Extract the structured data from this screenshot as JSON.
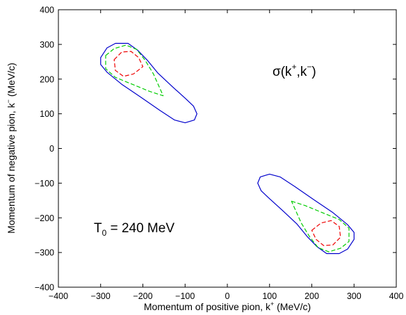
{
  "chart_data": {
    "type": "contour",
    "xlabel": "Momentum of positive pion, k",
    "xlabel_sup": "+",
    "xlabel_unit": " (MeV/c)",
    "ylabel": "Momentum of negative pion, k",
    "ylabel_sup": "−",
    "ylabel_unit": " (MeV/c)",
    "xlim": [
      -400,
      400
    ],
    "ylim": [
      -400,
      400
    ],
    "xticks": [
      -400,
      -300,
      -200,
      -100,
      0,
      100,
      200,
      300,
      400
    ],
    "yticks": [
      -400,
      -300,
      -200,
      -100,
      0,
      100,
      200,
      300,
      400
    ],
    "x_tick_labels": [
      "−400",
      "−300",
      "−200",
      "−100",
      "0",
      "100",
      "200",
      "300",
      "400"
    ],
    "y_tick_labels": [
      "−400",
      "−300",
      "−200",
      "−100",
      "0",
      "100",
      "200",
      "300",
      "400"
    ],
    "grid": false,
    "annotations": {
      "sigma_base": "σ(k",
      "sigma_sup1": "+",
      "sigma_mid": ",k",
      "sigma_sup2": "−",
      "sigma_end": ")",
      "t0_base": "T",
      "t0_sub": "0",
      "t0_rest": " = 240 MeV"
    },
    "contours": [
      {
        "level": "outer",
        "color": "#0000cc",
        "dash": "solid",
        "points": [
          [
            -300,
            262
          ],
          [
            -285,
            290
          ],
          [
            -265,
            303
          ],
          [
            -235,
            303
          ],
          [
            -212,
            283
          ],
          [
            -190,
            255
          ],
          [
            -165,
            218
          ],
          [
            -130,
            178
          ],
          [
            -100,
            145
          ],
          [
            -80,
            122
          ],
          [
            -72,
            100
          ],
          [
            -78,
            82
          ],
          [
            -100,
            74
          ],
          [
            -125,
            82
          ],
          [
            -160,
            110
          ],
          [
            -205,
            148
          ],
          [
            -250,
            185
          ],
          [
            -285,
            220
          ],
          [
            -300,
            242
          ]
        ]
      },
      {
        "level": "middle",
        "color": "#00cc00",
        "dash": "dash",
        "points": [
          [
            -288,
            268
          ],
          [
            -268,
            288
          ],
          [
            -240,
            298
          ],
          [
            -215,
            286
          ],
          [
            -195,
            255
          ],
          [
            -175,
            215
          ],
          [
            -152,
            152
          ],
          [
            -185,
            165
          ],
          [
            -225,
            185
          ],
          [
            -265,
            205
          ],
          [
            -288,
            230
          ]
        ]
      },
      {
        "level": "inner",
        "color": "#ee0000",
        "dash": "dash",
        "points": [
          [
            -268,
            256
          ],
          [
            -250,
            278
          ],
          [
            -228,
            280
          ],
          [
            -210,
            262
          ],
          [
            -200,
            236
          ],
          [
            -222,
            215
          ],
          [
            -246,
            208
          ],
          [
            -265,
            225
          ]
        ]
      },
      {
        "level": "outer",
        "color": "#0000cc",
        "dash": "solid",
        "points": [
          [
            72,
            -100
          ],
          [
            78,
            -82
          ],
          [
            100,
            -74
          ],
          [
            125,
            -82
          ],
          [
            160,
            -110
          ],
          [
            205,
            -148
          ],
          [
            250,
            -185
          ],
          [
            285,
            -220
          ],
          [
            300,
            -242
          ],
          [
            300,
            -262
          ],
          [
            285,
            -290
          ],
          [
            265,
            -303
          ],
          [
            235,
            -303
          ],
          [
            212,
            -283
          ],
          [
            190,
            -255
          ],
          [
            165,
            -218
          ],
          [
            130,
            -178
          ],
          [
            100,
            -145
          ],
          [
            80,
            -122
          ]
        ]
      },
      {
        "level": "middle",
        "color": "#00cc00",
        "dash": "dash",
        "points": [
          [
            152,
            -152
          ],
          [
            185,
            -165
          ],
          [
            225,
            -185
          ],
          [
            265,
            -205
          ],
          [
            288,
            -230
          ],
          [
            288,
            -268
          ],
          [
            268,
            -288
          ],
          [
            240,
            -298
          ],
          [
            215,
            -286
          ],
          [
            195,
            -255
          ],
          [
            175,
            -215
          ]
        ]
      },
      {
        "level": "inner",
        "color": "#ee0000",
        "dash": "dash",
        "points": [
          [
            200,
            -236
          ],
          [
            222,
            -215
          ],
          [
            246,
            -208
          ],
          [
            265,
            -225
          ],
          [
            268,
            -256
          ],
          [
            250,
            -278
          ],
          [
            228,
            -280
          ],
          [
            210,
            -262
          ]
        ]
      }
    ]
  }
}
